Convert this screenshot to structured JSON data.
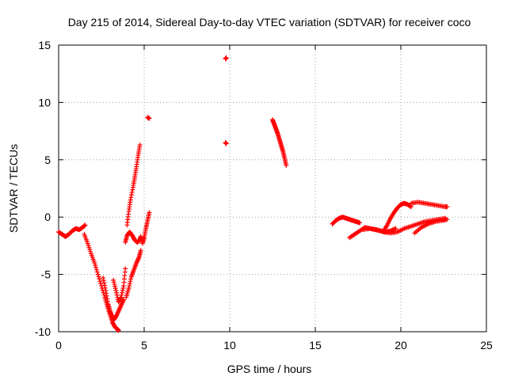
{
  "chart_data": {
    "type": "scatter",
    "title": "Day 215 of 2014, Sidereal Day-to-day VTEC variation (SDTVAR) for receiver coco",
    "xlabel": "GPS time / hours",
    "ylabel": "SDTVAR / TECUs",
    "xlim": [
      0,
      25
    ],
    "ylim": [
      -10,
      15
    ],
    "xticks": [
      "0",
      "5",
      "10",
      "15",
      "20",
      "25"
    ],
    "yticks": [
      "-10",
      "-5",
      "0",
      "5",
      "10",
      "15"
    ],
    "grid": true,
    "marker": "plus",
    "series": [
      {
        "name": "SDTVAR",
        "color": "#ff0000",
        "segments": [
          {
            "x": [
              0.0,
              0.2,
              0.4,
              0.6,
              0.8,
              1.0,
              1.2,
              1.4,
              1.55
            ],
            "y": [
              -1.3,
              -1.5,
              -1.7,
              -1.5,
              -1.2,
              -1.0,
              -1.1,
              -0.9,
              -0.7
            ]
          },
          {
            "x": [
              1.5,
              1.7,
              1.9,
              2.1,
              2.3,
              2.5,
              2.7,
              2.85,
              3.0,
              3.15,
              3.3,
              3.45,
              3.5
            ],
            "y": [
              -1.5,
              -2.3,
              -3.2,
              -4.0,
              -5.0,
              -6.0,
              -7.0,
              -7.8,
              -8.5,
              -9.2,
              -9.6,
              -9.8,
              -9.9
            ]
          },
          {
            "x": [
              2.6,
              2.75,
              2.9,
              3.0,
              3.1,
              3.2,
              3.35,
              3.5,
              3.65,
              3.8
            ],
            "y": [
              -5.3,
              -6.4,
              -7.6,
              -8.2,
              -8.6,
              -9.0,
              -8.7,
              -8.2,
              -7.7,
              -7.2
            ]
          },
          {
            "x": [
              3.2,
              3.35,
              3.5,
              3.65,
              3.8,
              3.9
            ],
            "y": [
              -5.5,
              -6.4,
              -7.4,
              -7.0,
              -6.0,
              -4.5
            ]
          },
          {
            "x": [
              3.95,
              4.1,
              4.25,
              4.4,
              4.55,
              4.7,
              4.8
            ],
            "y": [
              -7.0,
              -6.2,
              -5.2,
              -4.6,
              -4.0,
              -3.5,
              -2.9
            ]
          },
          {
            "x": [
              3.9,
              4.0,
              4.15,
              4.3,
              4.45,
              4.6,
              4.75,
              4.8
            ],
            "y": [
              -2.2,
              -1.6,
              -1.3,
              -1.6,
              -2.0,
              -2.2,
              -2.0,
              -1.7
            ]
          },
          {
            "x": [
              4.0,
              4.1,
              4.2,
              4.35,
              4.45,
              4.55,
              4.65,
              4.75
            ],
            "y": [
              -0.7,
              0.5,
              1.5,
              2.6,
              3.5,
              4.4,
              5.4,
              6.3
            ]
          },
          {
            "x": [
              4.9,
              5.0,
              5.1,
              5.2,
              5.3
            ],
            "y": [
              -2.3,
              -1.8,
              -1.0,
              -0.3,
              0.4
            ]
          },
          {
            "x": [
              5.2,
              5.3
            ],
            "y": [
              8.7,
              8.6
            ]
          },
          {
            "x": [
              9.75,
              9.8
            ],
            "y": [
              13.8,
              13.9
            ]
          },
          {
            "x": [
              9.75,
              9.8
            ],
            "y": [
              6.5,
              6.4
            ]
          },
          {
            "x": [
              12.5,
              12.6,
              12.7,
              12.8,
              12.9,
              13.0,
              13.1,
              13.2,
              13.3
            ],
            "y": [
              8.5,
              8.1,
              7.7,
              7.3,
              6.8,
              6.3,
              5.8,
              5.2,
              4.5
            ]
          },
          {
            "x": [
              16.0,
              16.2,
              16.4,
              16.6,
              16.8,
              17.0,
              17.2,
              17.4,
              17.6
            ],
            "y": [
              -0.6,
              -0.3,
              -0.1,
              0.0,
              -0.1,
              -0.2,
              -0.3,
              -0.4,
              -0.5
            ]
          },
          {
            "x": [
              17.0,
              17.3,
              17.6,
              17.9,
              18.2,
              18.5,
              18.8,
              19.1,
              19.4,
              19.7
            ],
            "y": [
              -1.8,
              -1.5,
              -1.2,
              -0.9,
              -1.0,
              -1.1,
              -1.2,
              -1.3,
              -1.2,
              -1.0
            ]
          },
          {
            "x": [
              17.8,
              18.2,
              18.6,
              19.0,
              19.4,
              19.8,
              20.2,
              20.6,
              21.0,
              21.4,
              21.8,
              22.2,
              22.6
            ],
            "y": [
              -1.1,
              -1.0,
              -1.1,
              -1.3,
              -1.4,
              -1.3,
              -1.0,
              -0.8,
              -0.6,
              -0.4,
              -0.3,
              -0.2,
              -0.1
            ]
          },
          {
            "x": [
              19.0,
              19.2,
              19.4,
              19.6,
              19.8,
              20.0,
              20.2,
              20.4,
              20.6
            ],
            "y": [
              -1.2,
              -0.7,
              -0.1,
              0.4,
              0.8,
              1.1,
              1.2,
              1.1,
              0.9
            ]
          },
          {
            "x": [
              20.6,
              21.0,
              21.4,
              21.8,
              22.2,
              22.6,
              22.7
            ],
            "y": [
              1.2,
              1.3,
              1.2,
              1.1,
              1.0,
              0.9,
              0.9
            ]
          },
          {
            "x": [
              20.8,
              21.2,
              21.6,
              22.0,
              22.4,
              22.7
            ],
            "y": [
              -1.4,
              -0.9,
              -0.6,
              -0.4,
              -0.3,
              -0.2
            ]
          }
        ]
      }
    ]
  }
}
